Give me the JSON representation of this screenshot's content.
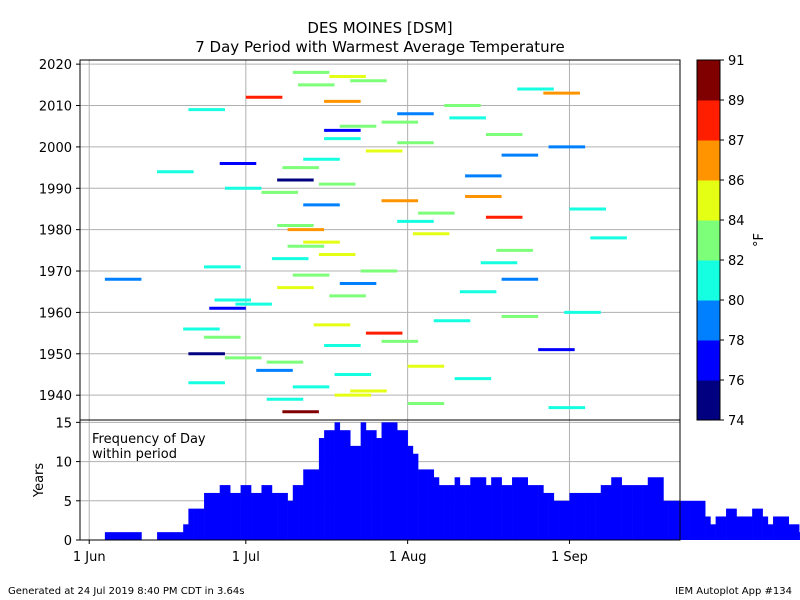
{
  "title_line1": "DES MOINES [DSM]",
  "title_line2": "7 Day Period with Warmest Average Temperature",
  "footer_left": "Generated at 24 Jul 2019 8:40 PM CDT in 3.64s",
  "footer_right": "IEM Autoplot App #134",
  "colorbar": {
    "label": "°F",
    "levels": [
      74,
      76,
      78,
      80,
      82,
      84,
      86,
      87,
      89,
      91
    ],
    "colors": [
      "#000080",
      "#0000ff",
      "#0080ff",
      "#15ffe1",
      "#7dff7a",
      "#e4ff13",
      "#ff9400",
      "#ff1e00",
      "#800000"
    ]
  },
  "chart_data": [
    {
      "type": "scatter",
      "marker": "horizontal-segment (7-day period)",
      "xlabel": "",
      "ylabel": "",
      "x_ticks": [
        "1 Jun",
        "1 Jul",
        "1 Aug",
        "1 Sep"
      ],
      "y_ticks": [
        1940,
        1950,
        1960,
        1970,
        1980,
        1990,
        2000,
        2010,
        2020
      ],
      "ylim": [
        1934,
        2021
      ],
      "grid": true,
      "points": [
        {
          "year": 1936,
          "start": "Jul 8",
          "temp": 90
        },
        {
          "year": 1937,
          "start": "Aug 28",
          "temp": 80
        },
        {
          "year": 1938,
          "start": "Aug 1",
          "temp": 82
        },
        {
          "year": 1939,
          "start": "Jul 5",
          "temp": 81
        },
        {
          "year": 1940,
          "start": "Jul 18",
          "temp": 85
        },
        {
          "year": 1941,
          "start": "Jul 21",
          "temp": 84
        },
        {
          "year": 1942,
          "start": "Jul 10",
          "temp": 81
        },
        {
          "year": 1943,
          "start": "Jun 20",
          "temp": 80
        },
        {
          "year": 1944,
          "start": "Aug 10",
          "temp": 80
        },
        {
          "year": 1945,
          "start": "Jul 18",
          "temp": 81
        },
        {
          "year": 1946,
          "start": "Jul 3",
          "temp": 79
        },
        {
          "year": 1947,
          "start": "Aug 1",
          "temp": 84
        },
        {
          "year": 1948,
          "start": "Jul 5",
          "temp": 82
        },
        {
          "year": 1949,
          "start": "Jun 27",
          "temp": 82
        },
        {
          "year": 1950,
          "start": "Jun 20",
          "temp": 75
        },
        {
          "year": 1951,
          "start": "Aug 26",
          "temp": 77
        },
        {
          "year": 1952,
          "start": "Jul 16",
          "temp": 80
        },
        {
          "year": 1953,
          "start": "Jul 27",
          "temp": 82
        },
        {
          "year": 1954,
          "start": "Jun 23",
          "temp": 82
        },
        {
          "year": 1955,
          "start": "Jul 24",
          "temp": 88
        },
        {
          "year": 1956,
          "start": "Jun 19",
          "temp": 81
        },
        {
          "year": 1957,
          "start": "Jul 14",
          "temp": 84
        },
        {
          "year": 1958,
          "start": "Aug 6",
          "temp": 80
        },
        {
          "year": 1959,
          "start": "Aug 19",
          "temp": 82
        },
        {
          "year": 1960,
          "start": "Aug 31",
          "temp": 80
        },
        {
          "year": 1961,
          "start": "Jun 24",
          "temp": 77
        },
        {
          "year": 1962,
          "start": "Jun 29",
          "temp": 80
        },
        {
          "year": 1963,
          "start": "Jun 25",
          "temp": 80
        },
        {
          "year": 1964,
          "start": "Jul 17",
          "temp": 82
        },
        {
          "year": 1965,
          "start": "Aug 11",
          "temp": 80
        },
        {
          "year": 1966,
          "start": "Jul 7",
          "temp": 85
        },
        {
          "year": 1967,
          "start": "Jul 19",
          "temp": 78
        },
        {
          "year": 1968,
          "start": "Jun 4",
          "temp": 79
        },
        {
          "year": 1968,
          "start": "Aug 19",
          "temp": 79
        },
        {
          "year": 1969,
          "start": "Jul 10",
          "temp": 82
        },
        {
          "year": 1970,
          "start": "Jul 23",
          "temp": 82
        },
        {
          "year": 1971,
          "start": "Jun 23",
          "temp": 80
        },
        {
          "year": 1972,
          "start": "Aug 15",
          "temp": 80
        },
        {
          "year": 1973,
          "start": "Jul 6",
          "temp": 80
        },
        {
          "year": 1974,
          "start": "Jul 15",
          "temp": 84
        },
        {
          "year": 1975,
          "start": "Aug 18",
          "temp": 82
        },
        {
          "year": 1976,
          "start": "Jul 9",
          "temp": 82
        },
        {
          "year": 1977,
          "start": "Jul 12",
          "temp": 84
        },
        {
          "year": 1978,
          "start": "Sep 5",
          "temp": 80
        },
        {
          "year": 1979,
          "start": "Aug 2",
          "temp": 84
        },
        {
          "year": 1980,
          "start": "Jul 9",
          "temp": 86
        },
        {
          "year": 1981,
          "start": "Jul 7",
          "temp": 82
        },
        {
          "year": 1982,
          "start": "Jul 30",
          "temp": 80
        },
        {
          "year": 1983,
          "start": "Aug 16",
          "temp": 88
        },
        {
          "year": 1984,
          "start": "Aug 3",
          "temp": 82
        },
        {
          "year": 1985,
          "start": "Sep 1",
          "temp": 80
        },
        {
          "year": 1986,
          "start": "Jul 12",
          "temp": 79
        },
        {
          "year": 1987,
          "start": "Jul 27",
          "temp": 86
        },
        {
          "year": 1988,
          "start": "Aug 12",
          "temp": 86
        },
        {
          "year": 1989,
          "start": "Jul 4",
          "temp": 82
        },
        {
          "year": 1990,
          "start": "Jun 27",
          "temp": 80
        },
        {
          "year": 1991,
          "start": "Jul 15",
          "temp": 82
        },
        {
          "year": 1992,
          "start": "Jul 7",
          "temp": 75
        },
        {
          "year": 1993,
          "start": "Aug 12",
          "temp": 79
        },
        {
          "year": 1994,
          "start": "Jun 14",
          "temp": 80
        },
        {
          "year": 1995,
          "start": "Jul 8",
          "temp": 82
        },
        {
          "year": 1996,
          "start": "Jun 26",
          "temp": 77
        },
        {
          "year": 1997,
          "start": "Jul 12",
          "temp": 80
        },
        {
          "year": 1998,
          "start": "Aug 19",
          "temp": 79
        },
        {
          "year": 1999,
          "start": "Jul 24",
          "temp": 84
        },
        {
          "year": 2000,
          "start": "Aug 28",
          "temp": 79
        },
        {
          "year": 2001,
          "start": "Jul 30",
          "temp": 82
        },
        {
          "year": 2002,
          "start": "Jul 16",
          "temp": 80
        },
        {
          "year": 2003,
          "start": "Aug 16",
          "temp": 82
        },
        {
          "year": 2004,
          "start": "Jul 16",
          "temp": 77
        },
        {
          "year": 2005,
          "start": "Jul 19",
          "temp": 82
        },
        {
          "year": 2006,
          "start": "Jul 27",
          "temp": 82
        },
        {
          "year": 2007,
          "start": "Aug 9",
          "temp": 80
        },
        {
          "year": 2008,
          "start": "Jul 30",
          "temp": 79
        },
        {
          "year": 2009,
          "start": "Jun 20",
          "temp": 80
        },
        {
          "year": 2010,
          "start": "Aug 8",
          "temp": 82
        },
        {
          "year": 2011,
          "start": "Jul 16",
          "temp": 86
        },
        {
          "year": 2012,
          "start": "Jul 1",
          "temp": 88
        },
        {
          "year": 2014,
          "start": "Aug 22",
          "temp": 80
        },
        {
          "year": 2013,
          "start": "Aug 27",
          "temp": 86
        },
        {
          "year": 2015,
          "start": "Jul 11",
          "temp": 82
        },
        {
          "year": 2016,
          "start": "Jul 21",
          "temp": 82
        },
        {
          "year": 2017,
          "start": "Jul 17",
          "temp": 84
        },
        {
          "year": 2018,
          "start": "Jul 10",
          "temp": 82
        }
      ]
    },
    {
      "type": "bar",
      "annotation": "Frequency of Day\nwithin period",
      "ylabel": "Years",
      "y_ticks": [
        0,
        5,
        10,
        15
      ],
      "ylim": [
        0,
        15.3
      ],
      "x_ticks": [
        "1 Jun",
        "1 Jul",
        "1 Aug",
        "1 Sep"
      ],
      "grid": true,
      "color": "#0000ff",
      "start_day": "Jun 1",
      "values": [
        0,
        0,
        0,
        1,
        1,
        1,
        1,
        1,
        1,
        1,
        0,
        0,
        0,
        1,
        1,
        1,
        1,
        1,
        2,
        4,
        4,
        4,
        6,
        6,
        6,
        7,
        7,
        6,
        6,
        7,
        7,
        6,
        6,
        7,
        7,
        6,
        6,
        6,
        5,
        7,
        7,
        9,
        9,
        9,
        13,
        14,
        14,
        15,
        14,
        14,
        12,
        12,
        15,
        14,
        14,
        13,
        15,
        15,
        15,
        14,
        14,
        12,
        11,
        9,
        9,
        9,
        8,
        7,
        7,
        7,
        8,
        7,
        7,
        8,
        8,
        8,
        7,
        8,
        8,
        7,
        7,
        8,
        8,
        8,
        7,
        7,
        7,
        6,
        6,
        5,
        5,
        5,
        6,
        6,
        6,
        6,
        6,
        6,
        7,
        7,
        8,
        8,
        7,
        7,
        7,
        7,
        7,
        8,
        8,
        8,
        5,
        5,
        5,
        5,
        5,
        5,
        5,
        5,
        3,
        2,
        3,
        3,
        4,
        4,
        3,
        3,
        3,
        4,
        4,
        3,
        2,
        3,
        3,
        3,
        2,
        2,
        1,
        1,
        1,
        1,
        0
      ]
    }
  ]
}
